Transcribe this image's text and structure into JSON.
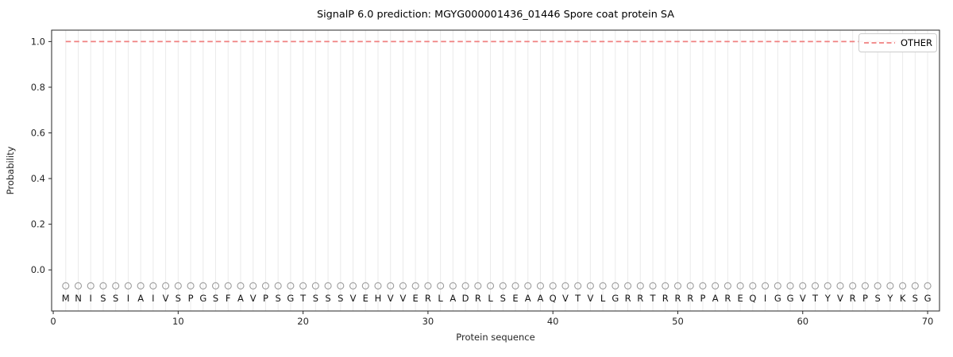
{
  "figure": {
    "background": "#ffffff"
  },
  "chart_data": {
    "type": "line",
    "title": "SignalP 6.0 prediction: MGYG000001436_01446 Spore coat protein SA",
    "xlabel": "Protein sequence",
    "ylabel": "Probability",
    "xlim": [
      -0.13,
      70.95
    ],
    "ylim": [
      -0.18,
      1.05
    ],
    "xticks": [
      0,
      10,
      20,
      30,
      40,
      50,
      60,
      70
    ],
    "yticks": [
      0.0,
      0.2,
      0.4,
      0.6,
      0.8,
      1.0
    ],
    "grid": {
      "vertical_per_residue": true,
      "color": "#eaeaea"
    },
    "sequence": "MNISSIAIVSPGSFAVPSGTSSSVEHVVERLADRLSEAAQVTVLGRRTRRRPAREQIGGVTYVRPSYKSG",
    "sequence_length": 70,
    "series": [
      {
        "name": "OTHER",
        "color": "#f08080",
        "linestyle": "dashed",
        "linewidth": 1.8,
        "x_start": 1,
        "x_end": 70,
        "y_value": 1.0
      }
    ],
    "markers": {
      "symbol": "circle-open",
      "edge_color": "#9c9c9c",
      "y_value": -0.07
    },
    "letters": {
      "color": "#141414",
      "y_value": -0.125
    },
    "axis_color": "#262626",
    "legend": {
      "position": "upper right",
      "entries": [
        {
          "label": "OTHER",
          "color": "#f08080",
          "linestyle": "dashed"
        }
      ]
    }
  }
}
